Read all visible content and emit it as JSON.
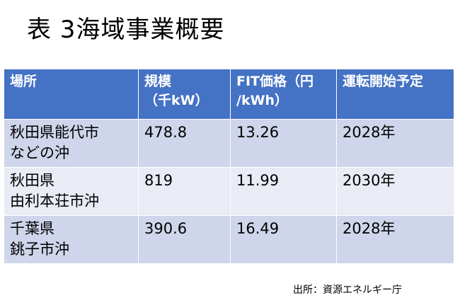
{
  "header": {
    "title": "表 3海域事業概要"
  },
  "table": {
    "columns": [
      [
        "場所"
      ],
      [
        "規模",
        "（千kW）"
      ],
      [
        "FIT価格（円",
        "/kWh）"
      ],
      [
        "運転開始予定"
      ]
    ],
    "rows": [
      [
        [
          "秋田県能代市",
          "などの沖"
        ],
        [
          "478.8"
        ],
        [
          "13.26"
        ],
        [
          "2028年"
        ]
      ],
      [
        [
          "秋田県",
          "由利本荘市沖"
        ],
        [
          "819"
        ],
        [
          "11.99"
        ],
        [
          "2030年"
        ]
      ],
      [
        [
          "千葉県",
          "銚子市沖"
        ],
        [
          "390.6"
        ],
        [
          "16.49"
        ],
        [
          "2028年"
        ]
      ]
    ]
  },
  "footer": {
    "source": "出所：資源エネルギー庁"
  }
}
